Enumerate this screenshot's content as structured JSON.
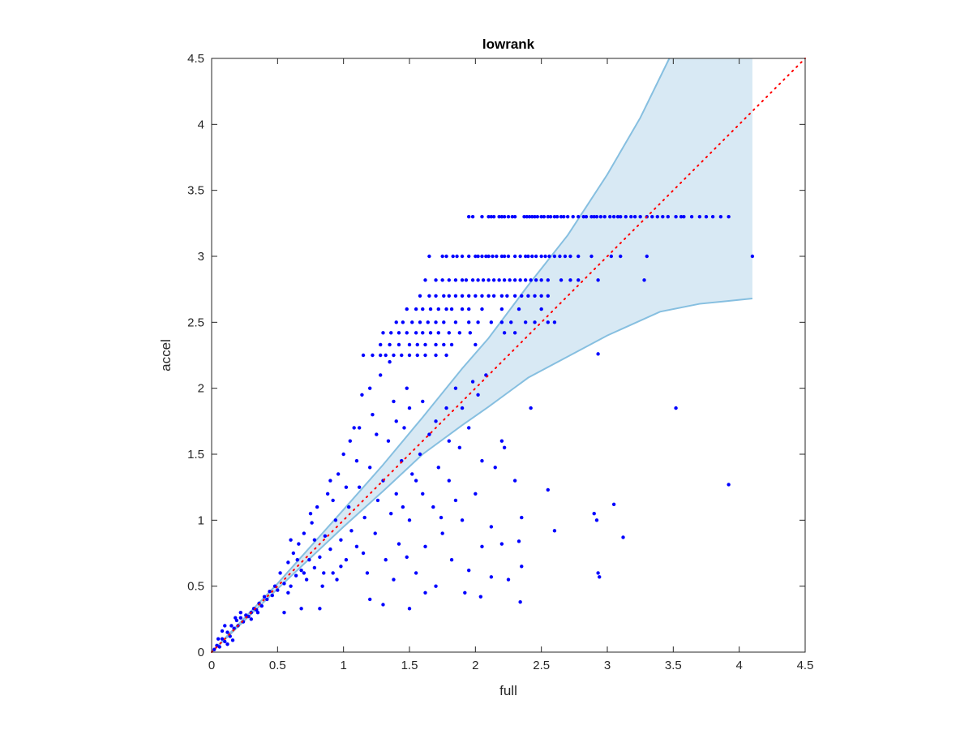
{
  "chart_data": {
    "type": "scatter",
    "title": "lowrank",
    "xlabel": "full",
    "ylabel": "accel",
    "xlim": [
      0,
      4.5
    ],
    "ylim": [
      0,
      4.5
    ],
    "xticks": [
      "0",
      "0.5",
      "1",
      "1.5",
      "2",
      "2.5",
      "3",
      "3.5",
      "4",
      "4.5"
    ],
    "yticks": [
      "0",
      "0.5",
      "1",
      "1.5",
      "2",
      "2.5",
      "3",
      "3.5",
      "4",
      "4.5"
    ],
    "grid": false,
    "colors": {
      "points": "#0000ff",
      "band_fill": "#d8e9f4",
      "band_edge": "#86bfe0",
      "diagonal": "#ff0000"
    },
    "diagonal": {
      "from": [
        0,
        0
      ],
      "to": [
        4.5,
        4.5
      ],
      "style": "dotted"
    },
    "band": {
      "upper": [
        [
          0,
          0
        ],
        [
          0.5,
          0.52
        ],
        [
          1.0,
          1.08
        ],
        [
          1.3,
          1.42
        ],
        [
          1.6,
          1.78
        ],
        [
          1.9,
          2.15
        ],
        [
          2.1,
          2.38
        ],
        [
          2.4,
          2.78
        ],
        [
          2.7,
          3.16
        ],
        [
          3.0,
          3.62
        ],
        [
          3.25,
          4.05
        ],
        [
          3.47,
          4.5
        ],
        [
          4.1,
          4.5
        ]
      ],
      "lower": [
        [
          0,
          0
        ],
        [
          0.5,
          0.48
        ],
        [
          1.0,
          0.95
        ],
        [
          1.3,
          1.22
        ],
        [
          1.6,
          1.5
        ],
        [
          1.9,
          1.72
        ],
        [
          2.1,
          1.86
        ],
        [
          2.4,
          2.08
        ],
        [
          2.7,
          2.24
        ],
        [
          3.0,
          2.4
        ],
        [
          3.4,
          2.58
        ],
        [
          3.7,
          2.64
        ],
        [
          4.1,
          2.68
        ]
      ]
    },
    "rows": [
      {
        "y": 3.3,
        "x": [
          1.95,
          1.98,
          2.05,
          2.1,
          2.12,
          2.14,
          2.18,
          2.2,
          2.22,
          2.25,
          2.28,
          2.3,
          2.37,
          2.39,
          2.41,
          2.43,
          2.45,
          2.47,
          2.5,
          2.52,
          2.55,
          2.57,
          2.6,
          2.62,
          2.65,
          2.67,
          2.7,
          2.74,
          2.78,
          2.82,
          2.84,
          2.88,
          2.9,
          2.92,
          2.95,
          2.98,
          3.02,
          3.05,
          3.08,
          3.1,
          3.14,
          3.18,
          3.21,
          3.25,
          3.3,
          3.34,
          3.38,
          3.42,
          3.46,
          3.52,
          3.56,
          3.58,
          3.64,
          3.7,
          3.75,
          3.8,
          3.86,
          3.92
        ]
      },
      {
        "y": 3.0,
        "x": [
          1.65,
          1.75,
          1.78,
          1.83,
          1.86,
          1.9,
          1.95,
          2.0,
          2.02,
          2.05,
          2.08,
          2.1,
          2.13,
          2.16,
          2.2,
          2.22,
          2.25,
          2.3,
          2.34,
          2.38,
          2.4,
          2.43,
          2.46,
          2.5,
          2.53,
          2.56,
          2.6,
          2.64,
          2.68,
          2.72,
          2.78,
          2.88,
          3.03,
          3.1,
          3.3,
          4.1
        ]
      },
      {
        "y": 2.82,
        "x": [
          1.62,
          1.7,
          1.75,
          1.8,
          1.85,
          1.9,
          1.93,
          1.98,
          2.02,
          2.06,
          2.1,
          2.14,
          2.18,
          2.22,
          2.26,
          2.3,
          2.34,
          2.38,
          2.42,
          2.46,
          2.5,
          2.55,
          2.65,
          2.72,
          2.78,
          2.93,
          3.28
        ]
      },
      {
        "y": 2.7,
        "x": [
          1.58,
          1.65,
          1.7,
          1.76,
          1.8,
          1.85,
          1.9,
          1.95,
          2.0,
          2.05,
          2.1,
          2.14,
          2.2,
          2.24,
          2.3,
          2.35,
          2.4,
          2.45,
          2.5,
          2.55
        ]
      },
      {
        "y": 2.6,
        "x": [
          1.48,
          1.55,
          1.6,
          1.66,
          1.72,
          1.78,
          1.82,
          1.9,
          1.95,
          2.05,
          2.2,
          2.33,
          2.5
        ]
      },
      {
        "y": 2.5,
        "x": [
          1.4,
          1.45,
          1.52,
          1.58,
          1.64,
          1.7,
          1.76,
          1.85,
          1.95,
          2.02,
          2.12,
          2.2,
          2.27,
          2.38,
          2.45,
          2.55,
          2.6
        ]
      },
      {
        "y": 2.42,
        "x": [
          1.3,
          1.36,
          1.42,
          1.48,
          1.55,
          1.6,
          1.66,
          1.72,
          1.8,
          1.88,
          1.96,
          2.22,
          2.3
        ]
      },
      {
        "y": 2.33,
        "x": [
          1.28,
          1.35,
          1.42,
          1.5,
          1.56,
          1.62,
          1.7,
          1.76,
          1.82,
          2.0
        ]
      },
      {
        "y": 2.25,
        "x": [
          1.15,
          1.22,
          1.28,
          1.32,
          1.38,
          1.44,
          1.5,
          1.56,
          1.62,
          1.7,
          1.78
        ]
      }
    ],
    "points": [
      [
        0.02,
        0.02
      ],
      [
        0.04,
        0.05
      ],
      [
        0.06,
        0.04
      ],
      [
        0.08,
        0.1
      ],
      [
        0.1,
        0.08
      ],
      [
        0.12,
        0.15
      ],
      [
        0.14,
        0.12
      ],
      [
        0.15,
        0.2
      ],
      [
        0.17,
        0.18
      ],
      [
        0.19,
        0.24
      ],
      [
        0.2,
        0.2
      ],
      [
        0.22,
        0.26
      ],
      [
        0.24,
        0.23
      ],
      [
        0.26,
        0.28
      ],
      [
        0.28,
        0.27
      ],
      [
        0.3,
        0.3
      ],
      [
        0.32,
        0.33
      ],
      [
        0.34,
        0.32
      ],
      [
        0.36,
        0.37
      ],
      [
        0.38,
        0.35
      ],
      [
        0.4,
        0.42
      ],
      [
        0.42,
        0.4
      ],
      [
        0.44,
        0.46
      ],
      [
        0.46,
        0.43
      ],
      [
        0.48,
        0.5
      ],
      [
        0.5,
        0.47
      ],
      [
        0.12,
        0.06
      ],
      [
        0.08,
        0.16
      ],
      [
        0.18,
        0.26
      ],
      [
        0.22,
        0.3
      ],
      [
        0.16,
        0.09
      ],
      [
        0.3,
        0.25
      ],
      [
        0.35,
        0.3
      ],
      [
        0.05,
        0.1
      ],
      [
        0.1,
        0.2
      ],
      [
        0.52,
        0.6
      ],
      [
        0.55,
        0.52
      ],
      [
        0.58,
        0.68
      ],
      [
        0.6,
        0.5
      ],
      [
        0.62,
        0.75
      ],
      [
        0.64,
        0.58
      ],
      [
        0.66,
        0.82
      ],
      [
        0.68,
        0.62
      ],
      [
        0.7,
        0.9
      ],
      [
        0.72,
        0.55
      ],
      [
        0.74,
        0.7
      ],
      [
        0.76,
        0.98
      ],
      [
        0.78,
        0.64
      ],
      [
        0.8,
        1.1
      ],
      [
        0.82,
        0.72
      ],
      [
        0.84,
        0.5
      ],
      [
        0.86,
        0.88
      ],
      [
        0.88,
        1.2
      ],
      [
        0.9,
        0.78
      ],
      [
        0.92,
        0.6
      ],
      [
        0.94,
        1.0
      ],
      [
        0.96,
        1.35
      ],
      [
        0.98,
        0.85
      ],
      [
        1.0,
        1.5
      ],
      [
        1.02,
        0.7
      ],
      [
        1.04,
        1.1
      ],
      [
        1.06,
        0.92
      ],
      [
        1.08,
        1.7
      ],
      [
        1.1,
        0.8
      ],
      [
        1.12,
        1.25
      ],
      [
        1.14,
        1.95
      ],
      [
        1.16,
        1.02
      ],
      [
        1.18,
        0.6
      ],
      [
        1.2,
        1.4
      ],
      [
        1.22,
        1.8
      ],
      [
        1.24,
        0.9
      ],
      [
        1.26,
        1.15
      ],
      [
        1.28,
        2.1
      ],
      [
        1.3,
        1.3
      ],
      [
        1.32,
        0.7
      ],
      [
        1.34,
        1.6
      ],
      [
        1.36,
        1.05
      ],
      [
        1.38,
        1.9
      ],
      [
        1.4,
        1.2
      ],
      [
        1.42,
        0.82
      ],
      [
        1.44,
        1.45
      ],
      [
        1.46,
        1.7
      ],
      [
        1.48,
        2.0
      ],
      [
        1.5,
        1.0
      ],
      [
        1.52,
        1.35
      ],
      [
        1.55,
        0.6
      ],
      [
        1.58,
        1.5
      ],
      [
        1.6,
        1.2
      ],
      [
        1.62,
        0.8
      ],
      [
        1.65,
        1.65
      ],
      [
        1.68,
        1.1
      ],
      [
        1.7,
        0.5
      ],
      [
        1.72,
        1.4
      ],
      [
        1.75,
        0.9
      ],
      [
        1.78,
        1.85
      ],
      [
        1.8,
        1.3
      ],
      [
        1.82,
        0.7
      ],
      [
        1.85,
        2.0
      ],
      [
        1.88,
        1.55
      ],
      [
        1.9,
        1.0
      ],
      [
        1.92,
        0.45
      ],
      [
        1.95,
        1.7
      ],
      [
        2.0,
        1.2
      ],
      [
        2.05,
        0.8
      ],
      [
        2.08,
        2.1
      ],
      [
        2.12,
        0.95
      ],
      [
        2.2,
        1.6
      ],
      [
        2.25,
        0.55
      ],
      [
        2.3,
        1.3
      ],
      [
        2.35,
        0.65
      ],
      [
        2.42,
        1.85
      ],
      [
        2.55,
        1.23
      ],
      [
        2.6,
        0.92
      ],
      [
        2.9,
        1.05
      ],
      [
        2.92,
        1.0
      ],
      [
        2.93,
        0.6
      ],
      [
        2.94,
        0.57
      ],
      [
        3.05,
        1.12
      ],
      [
        3.12,
        0.87
      ],
      [
        3.52,
        1.85
      ],
      [
        3.92,
        1.27
      ],
      [
        2.93,
        2.26
      ],
      [
        2.35,
        1.02
      ],
      [
        2.33,
        0.84
      ],
      [
        2.2,
        0.82
      ],
      [
        2.04,
        0.42
      ],
      [
        2.12,
        0.57
      ],
      [
        2.34,
        0.38
      ],
      [
        1.5,
        0.33
      ],
      [
        1.3,
        0.36
      ],
      [
        1.2,
        0.4
      ],
      [
        0.82,
        0.33
      ],
      [
        0.68,
        0.33
      ],
      [
        0.55,
        0.3
      ],
      [
        0.6,
        0.85
      ],
      [
        0.7,
        0.6
      ],
      [
        0.75,
        1.05
      ],
      [
        0.85,
        0.6
      ],
      [
        0.9,
        1.3
      ],
      [
        0.95,
        0.55
      ],
      [
        1.05,
        1.6
      ],
      [
        1.1,
        1.45
      ],
      [
        1.15,
        0.75
      ],
      [
        1.2,
        2.0
      ],
      [
        1.25,
        1.65
      ],
      [
        1.35,
        2.2
      ],
      [
        1.4,
        1.75
      ],
      [
        1.45,
        1.1
      ],
      [
        1.5,
        1.85
      ],
      [
        1.55,
        1.3
      ],
      [
        1.6,
        1.9
      ],
      [
        1.7,
        1.75
      ],
      [
        1.8,
        1.6
      ],
      [
        1.9,
        1.85
      ],
      [
        1.98,
        2.05
      ],
      [
        2.02,
        1.95
      ],
      [
        2.15,
        1.4
      ],
      [
        2.22,
        1.55
      ],
      [
        1.12,
        1.7
      ],
      [
        1.02,
        1.25
      ],
      [
        0.98,
        0.65
      ],
      [
        0.92,
        1.15
      ],
      [
        0.78,
        0.85
      ],
      [
        0.65,
        0.7
      ],
      [
        0.58,
        0.45
      ],
      [
        1.38,
        0.55
      ],
      [
        1.62,
        0.45
      ],
      [
        1.48,
        0.72
      ],
      [
        1.74,
        1.02
      ],
      [
        1.85,
        1.15
      ],
      [
        1.95,
        0.62
      ],
      [
        2.05,
        1.45
      ]
    ]
  }
}
